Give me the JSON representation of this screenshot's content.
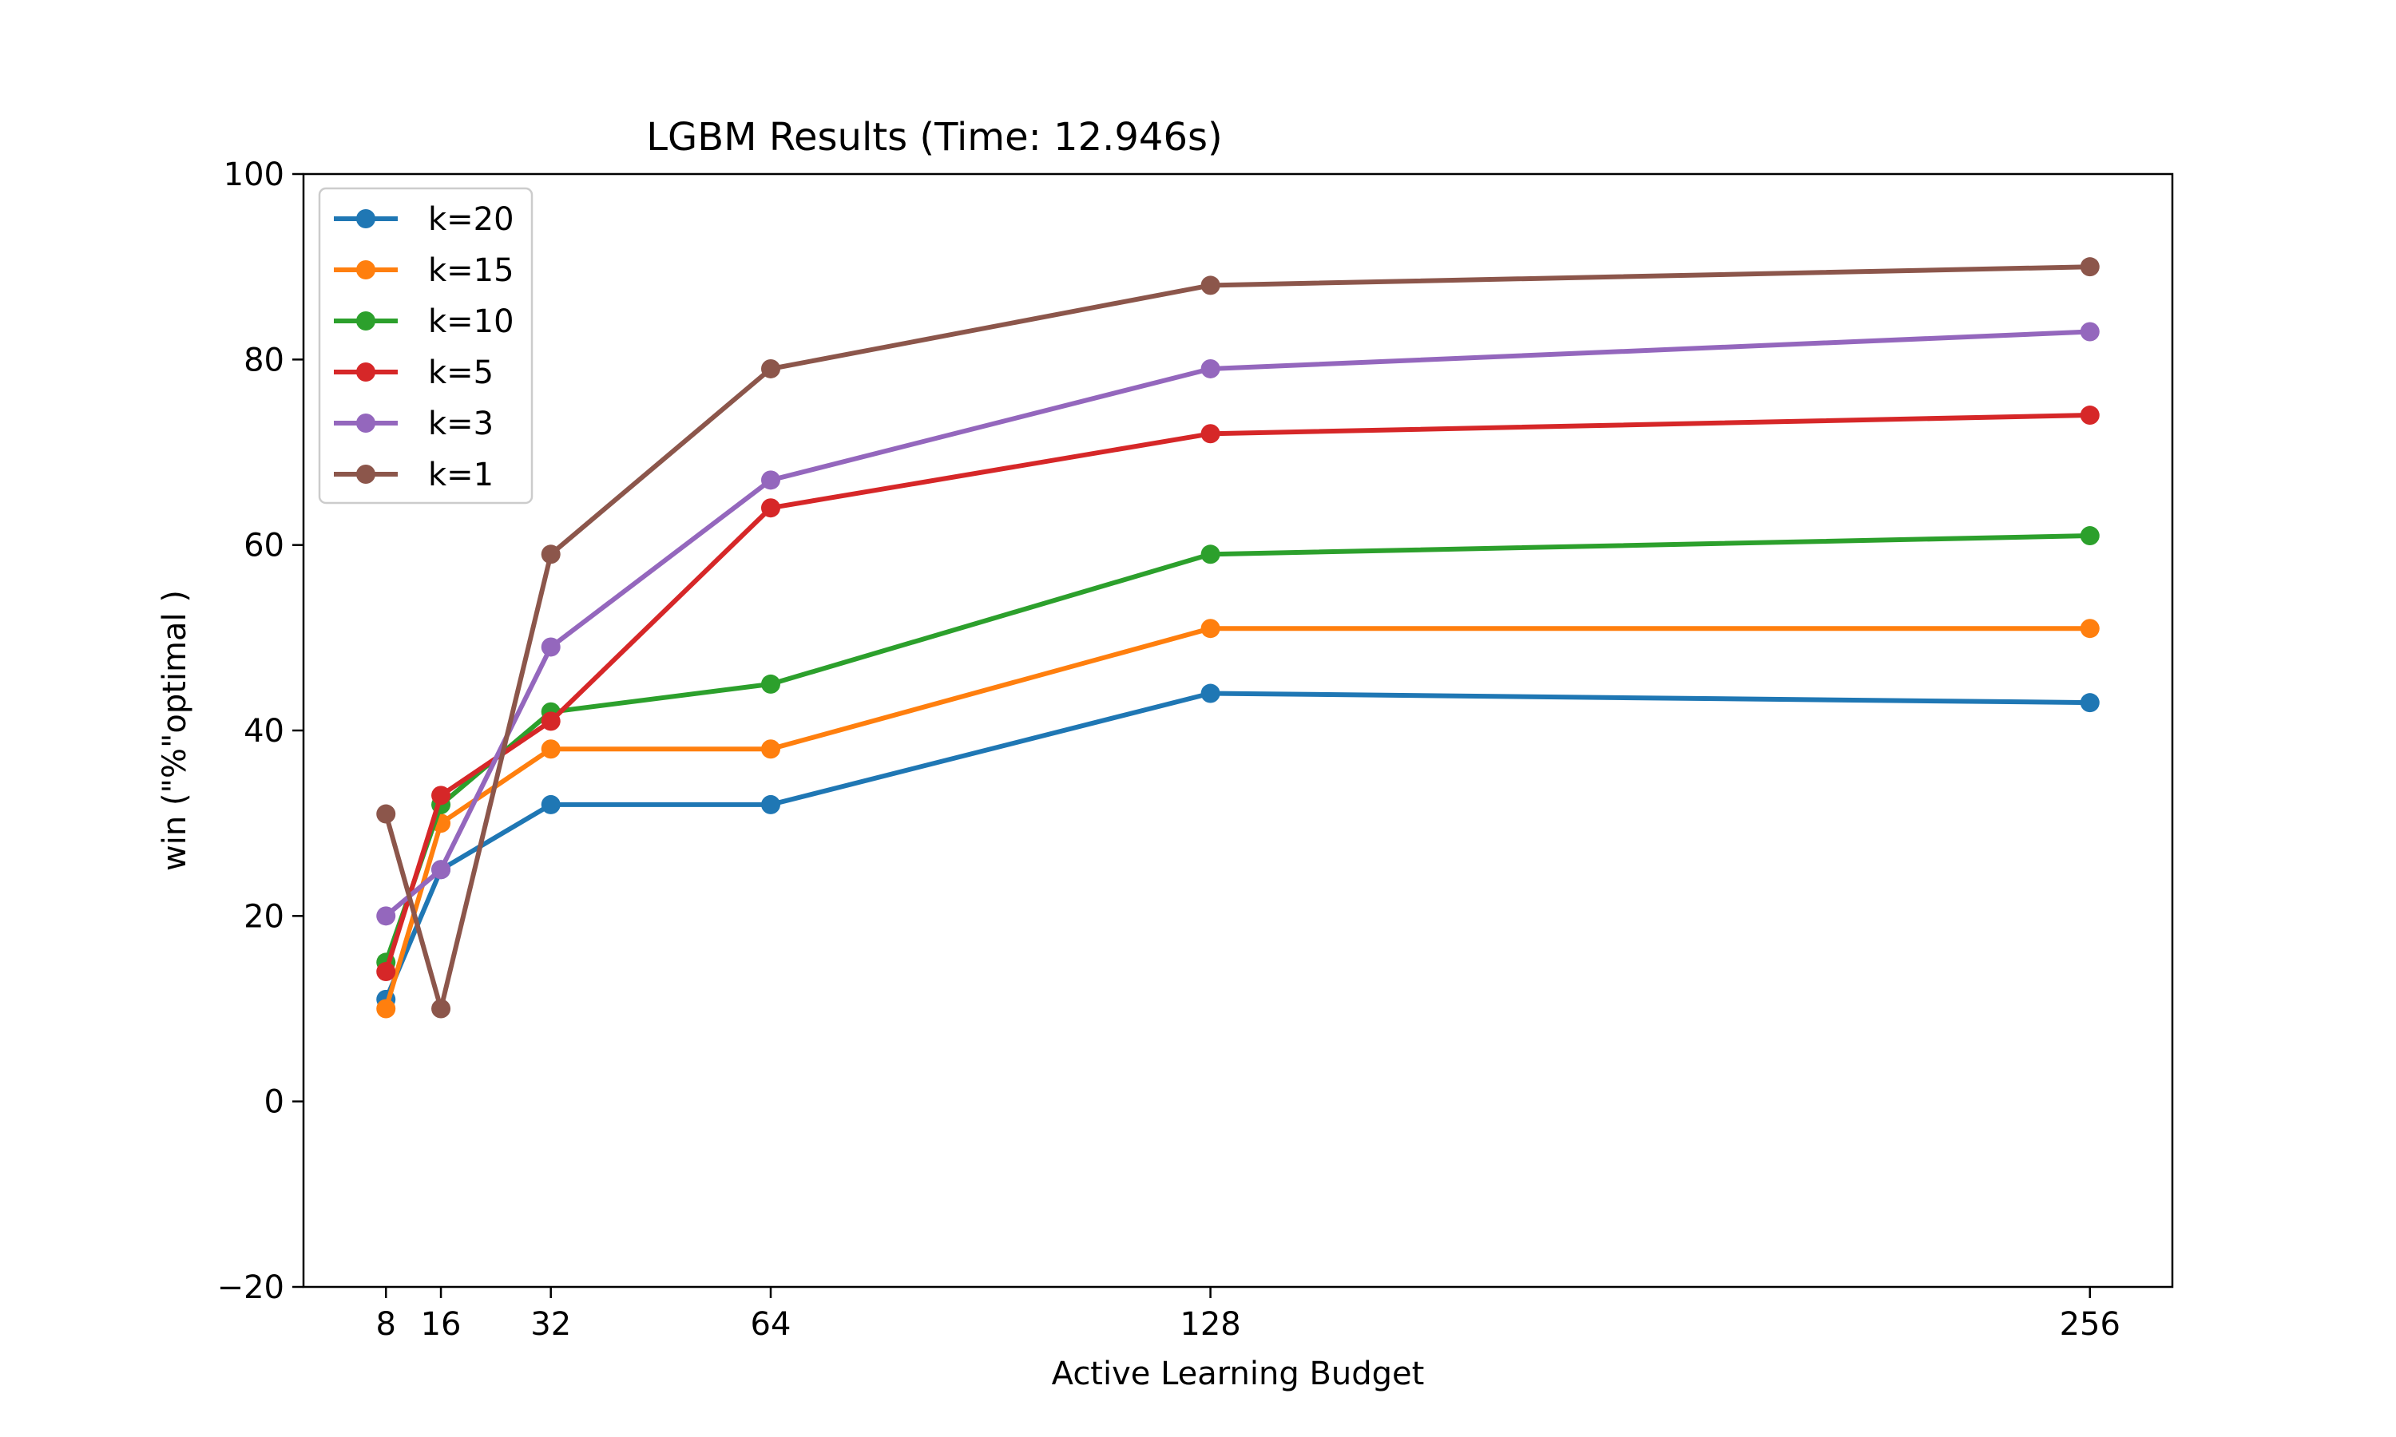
{
  "chart_data": {
    "type": "line",
    "title": "LGBM Results (Time: 12.946s)",
    "xlabel": "Active Learning Budget",
    "ylabel": "win (\"%\"optimal )",
    "x": [
      8,
      16,
      32,
      64,
      128,
      256
    ],
    "x_tick_labels": [
      "8",
      "16",
      "32",
      "64",
      "128",
      "256"
    ],
    "xlim": [
      -4,
      268
    ],
    "ylim": [
      -20,
      100
    ],
    "y_ticks": [
      -20,
      0,
      20,
      40,
      60,
      80,
      100
    ],
    "y_tick_labels": [
      "−20",
      "0",
      "20",
      "40",
      "60",
      "80",
      "100"
    ],
    "grid": false,
    "legend_position": "upper-left",
    "series": [
      {
        "name": "k=20",
        "color": "#1f77b4",
        "values": [
          11,
          25,
          32,
          32,
          44,
          43
        ]
      },
      {
        "name": "k=15",
        "color": "#ff7f0e",
        "values": [
          10,
          30,
          38,
          38,
          51,
          51
        ]
      },
      {
        "name": "k=10",
        "color": "#2ca02c",
        "values": [
          15,
          32,
          42,
          45,
          59,
          61
        ]
      },
      {
        "name": "k=5",
        "color": "#d62728",
        "values": [
          14,
          33,
          41,
          64,
          72,
          74
        ]
      },
      {
        "name": "k=3",
        "color": "#9467bd",
        "values": [
          20,
          25,
          49,
          67,
          79,
          83
        ]
      },
      {
        "name": "k=1",
        "color": "#8c564b",
        "values": [
          31,
          10,
          59,
          79,
          88,
          90
        ]
      }
    ]
  }
}
